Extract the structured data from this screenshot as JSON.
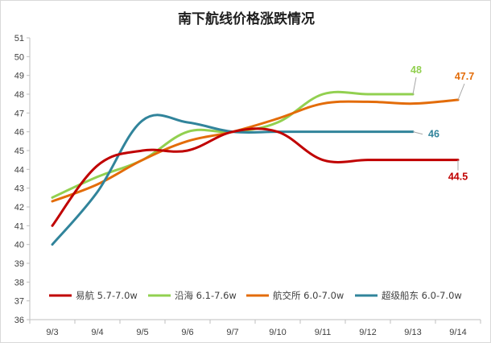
{
  "chart_data": {
    "type": "line",
    "title": "南下航线价格涨跌情况",
    "xlabel": "",
    "ylabel": "",
    "categories": [
      "9/3",
      "9/4",
      "9/5",
      "9/6",
      "9/7",
      "9/10",
      "9/11",
      "9/12",
      "9/13",
      "9/14"
    ],
    "ylim": [
      36,
      51
    ],
    "yticks": [
      36,
      37,
      38,
      39,
      40,
      41,
      42,
      43,
      44,
      45,
      46,
      47,
      48,
      49,
      50,
      51
    ],
    "grid": false,
    "legend_position": "bottom",
    "series": [
      {
        "name": "易航 5.7-7.0w",
        "color": "#c00000",
        "values": [
          41,
          44.2,
          45,
          45,
          46,
          46,
          44.5,
          44.5,
          44.5,
          44.5
        ],
        "end_label": "44.5"
      },
      {
        "name": "沿海 6.1-7.6w",
        "color": "#92d050",
        "values": [
          42.5,
          43.6,
          44.5,
          46,
          46,
          46.5,
          48,
          48,
          48,
          null
        ],
        "end_label": "48"
      },
      {
        "name": "航交所 6.0-7.0w",
        "color": "#e36c09",
        "values": [
          42.3,
          43.2,
          44.5,
          45.5,
          46,
          46.7,
          47.5,
          47.6,
          47.5,
          47.7
        ],
        "end_label": "47.7"
      },
      {
        "name": "超级船东 6.0-7.0w",
        "color": "#31849b",
        "values": [
          40,
          42.8,
          46.6,
          46.5,
          46,
          46,
          46,
          46,
          46,
          null
        ],
        "end_label": "46"
      }
    ]
  }
}
